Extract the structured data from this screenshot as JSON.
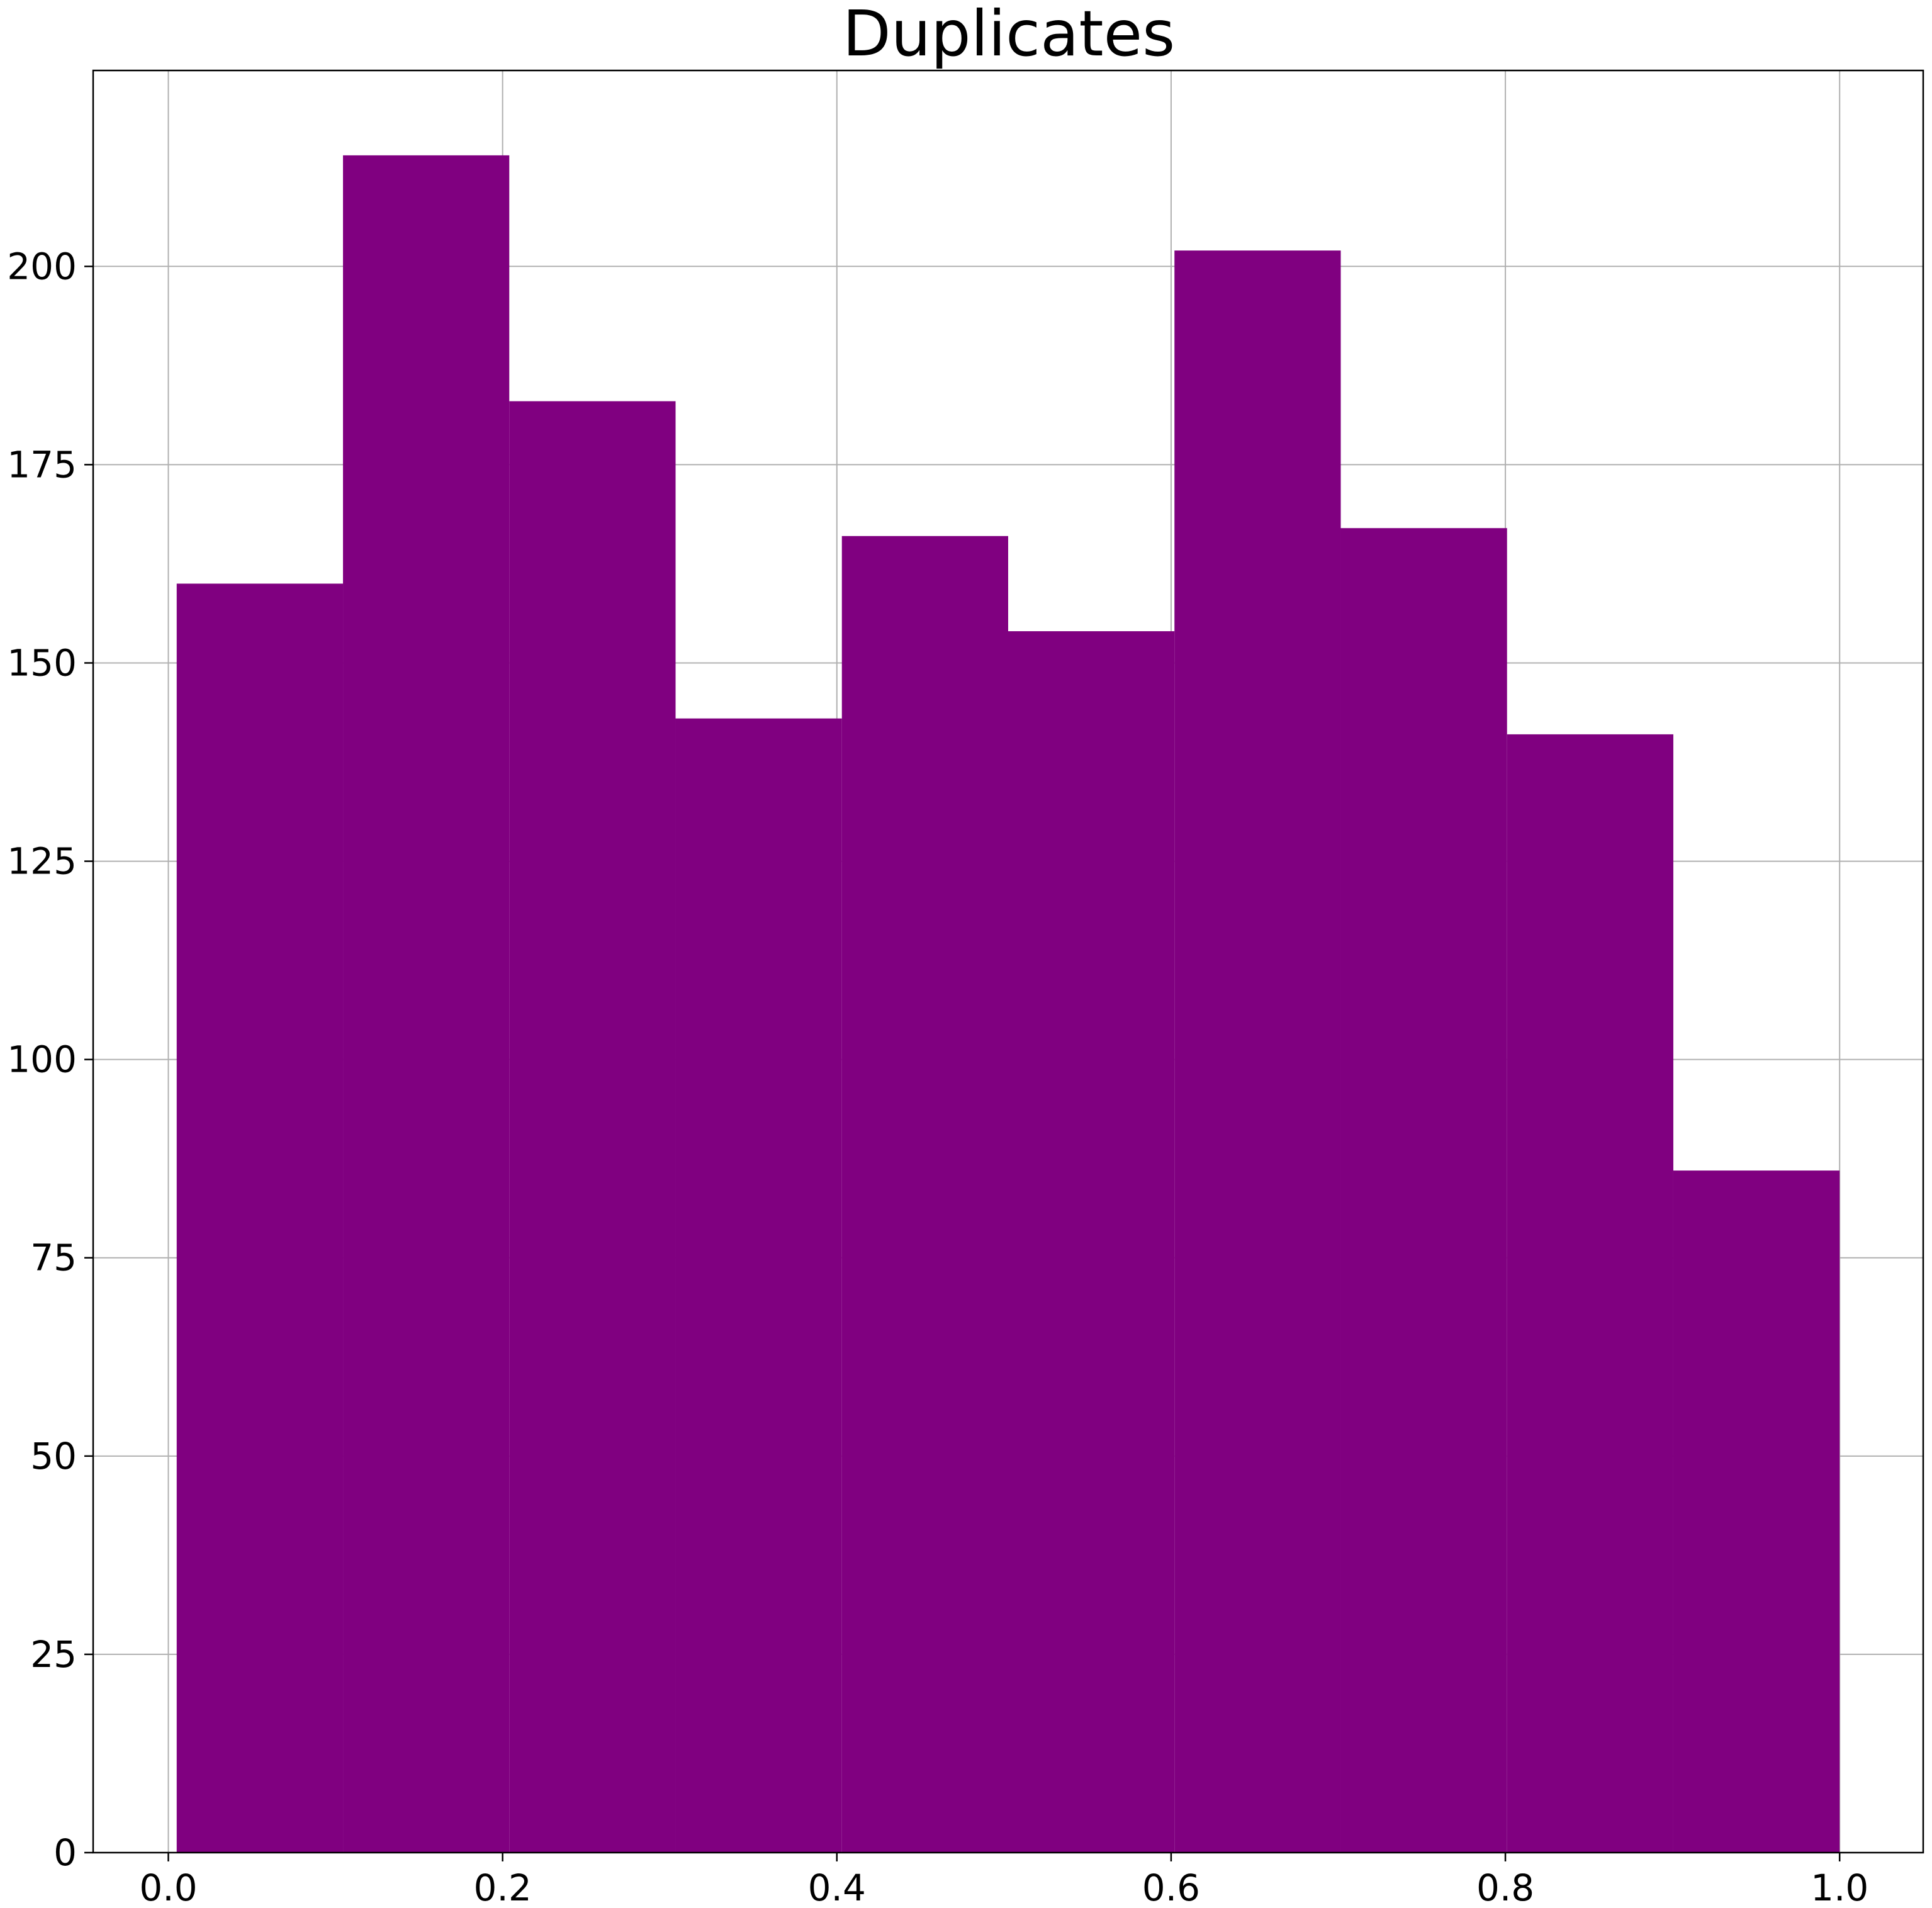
{
  "chart_data": {
    "type": "bar",
    "title": "Duplicates",
    "xlabel": "",
    "ylabel": "",
    "bar_color": "#800080",
    "grid": true,
    "xlim": [
      -0.045,
      1.05
    ],
    "ylim": [
      0,
      224.7
    ],
    "x_ticks": [
      0.0,
      0.2,
      0.4,
      0.6,
      0.8,
      1.0
    ],
    "x_tick_labels": [
      "0.0",
      "0.2",
      "0.4",
      "0.6",
      "0.8",
      "1.0"
    ],
    "y_ticks": [
      0,
      25,
      50,
      75,
      100,
      125,
      150,
      175,
      200
    ],
    "y_tick_labels": [
      "0",
      "25",
      "50",
      "75",
      "100",
      "125",
      "150",
      "175",
      "200"
    ],
    "bins": [
      {
        "x0": 0.005,
        "x1": 0.1045,
        "value": 160
      },
      {
        "x0": 0.1045,
        "x1": 0.204,
        "value": 214
      },
      {
        "x0": 0.204,
        "x1": 0.3035,
        "value": 183
      },
      {
        "x0": 0.3035,
        "x1": 0.403,
        "value": 143
      },
      {
        "x0": 0.403,
        "x1": 0.5025,
        "value": 166
      },
      {
        "x0": 0.5025,
        "x1": 0.602,
        "value": 154
      },
      {
        "x0": 0.602,
        "x1": 0.7015,
        "value": 202
      },
      {
        "x0": 0.7015,
        "x1": 0.801,
        "value": 167
      },
      {
        "x0": 0.801,
        "x1": 0.9005,
        "value": 141
      },
      {
        "x0": 0.9005,
        "x1": 1.0,
        "value": 86
      }
    ]
  }
}
